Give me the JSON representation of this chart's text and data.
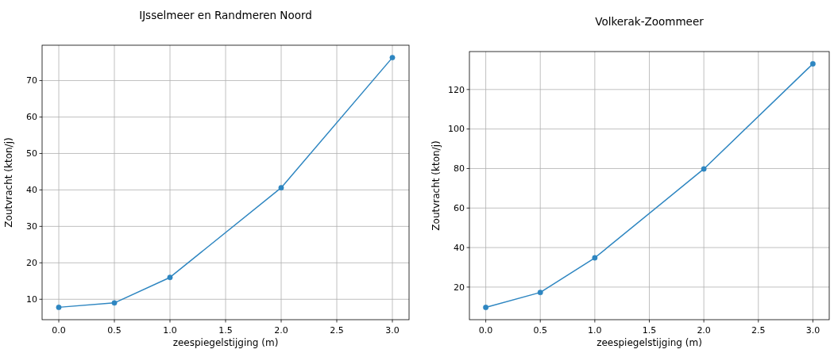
{
  "chart_data": [
    {
      "type": "line",
      "title": "IJsselmeer en Randmeren Noord",
      "xlabel": "zeespiegelstijging (m)",
      "ylabel": "Zoutvracht (kton/j)",
      "x": [
        0,
        0.5,
        1,
        2,
        3
      ],
      "series": [
        {
          "color": "#2e86c1",
          "values": [
            7.8,
            9.0,
            16.0,
            40.6,
            76.3
          ]
        }
      ],
      "xlim": [
        -0.15,
        3.15
      ],
      "xticks": [
        {
          "value": 0,
          "label": "0.0"
        },
        0.5,
        {
          "value": 1,
          "label": "1.0"
        },
        1.5,
        {
          "value": 2,
          "label": "2.0"
        },
        2.5,
        {
          "value": 3,
          "label": "3.0"
        }
      ],
      "ylim": [
        4.4,
        79.7
      ],
      "yticks": [
        10,
        20,
        30,
        40,
        50,
        60,
        70
      ],
      "grid": true,
      "marker": "circle"
    },
    {
      "type": "line",
      "title": "Volkerak-Zoommeer",
      "xlabel": "zeespiegelstijging (m)",
      "ylabel": "Zoutvracht (kton/j)",
      "x": [
        0,
        0.5,
        1,
        2,
        3
      ],
      "series": [
        {
          "color": "#2e86c1",
          "values": [
            9.7,
            17.3,
            34.8,
            79.8,
            133.0
          ]
        }
      ],
      "xlim": [
        -0.15,
        3.15
      ],
      "xticks": [
        {
          "value": 0,
          "label": "0.0"
        },
        0.5,
        {
          "value": 1,
          "label": "1.0"
        },
        1.5,
        {
          "value": 2,
          "label": "2.0"
        },
        2.5,
        {
          "value": 3,
          "label": "3.0"
        }
      ],
      "ylim": [
        3.5,
        139.2
      ],
      "yticks": [
        20,
        40,
        60,
        80,
        100,
        120
      ],
      "grid": true,
      "marker": "circle"
    }
  ]
}
